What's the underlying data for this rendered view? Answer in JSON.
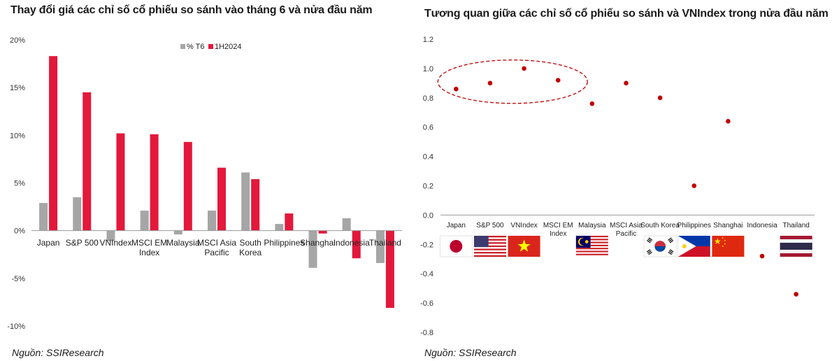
{
  "colors": {
    "series_t6": "#a6a6a6",
    "series_1h": "#e3183b",
    "dot": "#c00000",
    "axis": "#999999"
  },
  "chart_data": [
    {
      "type": "bar",
      "title": "Thay đổi giá các chỉ số cổ phiếu so sánh vào tháng 6 và nửa đầu năm",
      "source": "Nguồn: SSIResearch",
      "legend_position": "top-right",
      "grid": false,
      "ylim": [
        -10,
        20
      ],
      "yticks": [
        "20%",
        "15%",
        "10%",
        "5%",
        "0%",
        "-5%",
        "-10%"
      ],
      "categories": [
        [
          "Japan"
        ],
        [
          "S&P 500"
        ],
        [
          "VNIndex"
        ],
        [
          "MSCI EM",
          "Index"
        ],
        [
          "Malaysia"
        ],
        [
          "MSCI Asia",
          "Pacific"
        ],
        [
          "South",
          "Korea"
        ],
        [
          "Philippines"
        ],
        [
          "Shanghai"
        ],
        [
          "Indonesia"
        ],
        [
          "Thailand"
        ]
      ],
      "series": [
        {
          "name": "% T6",
          "values": [
            2.9,
            3.5,
            -1.1,
            2.1,
            -0.4,
            2.1,
            6.1,
            0.7,
            -3.9,
            1.3,
            -3.4
          ]
        },
        {
          "name": "1H2024",
          "values": [
            18.3,
            14.5,
            10.2,
            10.1,
            9.3,
            6.6,
            5.4,
            1.8,
            -0.3,
            -2.9,
            -8.1
          ]
        }
      ]
    },
    {
      "type": "scatter",
      "title": "Tương quan giữa các chỉ số cổ phiếu so sánh và VNIndex trong nửa đầu năm",
      "source": "Nguồn: SSIResearch",
      "grid": false,
      "ylim": [
        -0.8,
        1.2
      ],
      "yticks": [
        "1.2",
        "1.0",
        "0.8",
        "0.6",
        "0.4",
        "0.2",
        "0.0",
        "-0.2",
        "-0.4",
        "-0.6",
        "-0.8"
      ],
      "categories": [
        [
          "Japan"
        ],
        [
          "S&P 500"
        ],
        [
          "VNIndex"
        ],
        [
          "MSCI EM",
          "Index"
        ],
        [
          "Malaysia"
        ],
        [
          "MSCI Asia",
          "Pacific"
        ],
        [
          "South Korea"
        ],
        [
          "Philippines"
        ],
        [
          "Shanghai"
        ],
        [
          "Indonesia"
        ],
        [
          "Thailand"
        ]
      ],
      "values": [
        0.86,
        0.9,
        1.0,
        0.92,
        0.76,
        0.9,
        0.8,
        0.2,
        0.64,
        -0.28,
        -0.54
      ],
      "flags": [
        "japan-flag",
        "usa-flag",
        "vietnam-flag",
        null,
        "malaysia-flag",
        null,
        "south-korea-flag",
        "philippines-flag",
        "china-flag",
        null,
        "thailand-flag"
      ],
      "highlight": {
        "shape": "dashed-ellipse",
        "categories": [
          "Japan",
          "S&P 500",
          "VNIndex",
          "MSCI EM Index"
        ]
      }
    }
  ]
}
